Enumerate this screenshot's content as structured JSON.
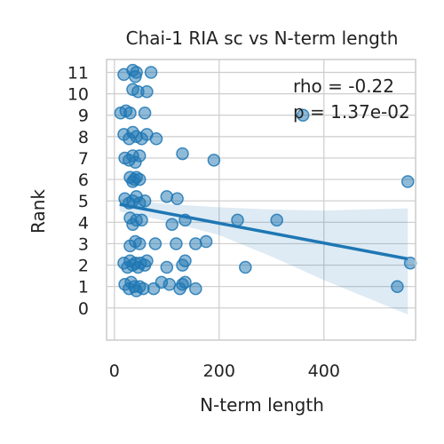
{
  "chart_data": {
    "type": "scatter",
    "title": "Chai-1 RIA sc vs N-term length",
    "xlabel": "N-term length",
    "ylabel": "Rank",
    "xlim": [
      -15,
      575
    ],
    "ylim": [
      -1.5,
      11.6
    ],
    "xticks": [
      0,
      200,
      400
    ],
    "yticks": [
      0,
      1,
      2,
      3,
      4,
      5,
      6,
      7,
      8,
      9,
      10,
      11
    ],
    "grid": true,
    "point_color": "#1f77b4",
    "annotations": [
      "rho = -0.22",
      "p = 1.37e-02"
    ],
    "regression": {
      "x_range": [
        10,
        560
      ],
      "intercept": 4.88,
      "slope": -0.00462,
      "ci_band": {
        "x": [
          10,
          100,
          200,
          300,
          400,
          560
        ],
        "lower": [
          4.5,
          4.05,
          3.4,
          2.4,
          1.3,
          -0.3
        ],
        "upper": [
          5.1,
          4.85,
          4.7,
          4.6,
          4.55,
          4.65
        ]
      }
    },
    "points": [
      [
        18,
        10.9
      ],
      [
        35,
        11.1
      ],
      [
        40,
        10.8
      ],
      [
        42,
        11.0
      ],
      [
        70,
        11.0
      ],
      [
        35,
        10.2
      ],
      [
        45,
        10.1
      ],
      [
        62,
        10.1
      ],
      [
        12,
        9.1
      ],
      [
        22,
        9.2
      ],
      [
        30,
        9.1
      ],
      [
        58,
        9.1
      ],
      [
        18,
        8.1
      ],
      [
        28,
        7.9
      ],
      [
        35,
        8.2
      ],
      [
        42,
        8.0
      ],
      [
        52,
        7.9
      ],
      [
        62,
        8.1
      ],
      [
        80,
        7.9
      ],
      [
        20,
        7.0
      ],
      [
        28,
        6.9
      ],
      [
        35,
        7.1
      ],
      [
        40,
        6.8
      ],
      [
        48,
        7.1
      ],
      [
        130,
        7.2
      ],
      [
        190,
        6.9
      ],
      [
        30,
        6.1
      ],
      [
        35,
        5.9
      ],
      [
        38,
        6.0
      ],
      [
        42,
        6.1
      ],
      [
        48,
        6.0
      ],
      [
        20,
        5.1
      ],
      [
        28,
        4.9
      ],
      [
        35,
        5.0
      ],
      [
        42,
        5.2
      ],
      [
        48,
        4.9
      ],
      [
        58,
        5.0
      ],
      [
        100,
        5.2
      ],
      [
        120,
        5.1
      ],
      [
        30,
        4.2
      ],
      [
        35,
        3.9
      ],
      [
        42,
        4.1
      ],
      [
        52,
        4.1
      ],
      [
        110,
        3.9
      ],
      [
        135,
        4.1
      ],
      [
        235,
        4.1
      ],
      [
        310,
        4.1
      ],
      [
        30,
        2.9
      ],
      [
        40,
        3.1
      ],
      [
        48,
        3.0
      ],
      [
        78,
        3.0
      ],
      [
        118,
        3.0
      ],
      [
        155,
        3.0
      ],
      [
        175,
        3.1
      ],
      [
        18,
        2.1
      ],
      [
        25,
        1.9
      ],
      [
        30,
        2.2
      ],
      [
        35,
        2.0
      ],
      [
        40,
        2.1
      ],
      [
        45,
        1.9
      ],
      [
        50,
        2.1
      ],
      [
        58,
        2.0
      ],
      [
        62,
        2.2
      ],
      [
        100,
        1.9
      ],
      [
        130,
        2.0
      ],
      [
        135,
        2.2
      ],
      [
        250,
        1.9
      ],
      [
        565,
        2.1
      ],
      [
        20,
        1.1
      ],
      [
        28,
        0.9
      ],
      [
        32,
        1.2
      ],
      [
        38,
        1.0
      ],
      [
        42,
        0.8
      ],
      [
        48,
        1.0
      ],
      [
        55,
        0.9
      ],
      [
        75,
        0.9
      ],
      [
        90,
        1.2
      ],
      [
        105,
        1.1
      ],
      [
        125,
        0.9
      ],
      [
        130,
        1.1
      ],
      [
        135,
        1.2
      ],
      [
        155,
        0.9
      ],
      [
        540,
        1.0
      ],
      [
        360,
        9.0
      ],
      [
        560,
        5.9
      ]
    ]
  }
}
